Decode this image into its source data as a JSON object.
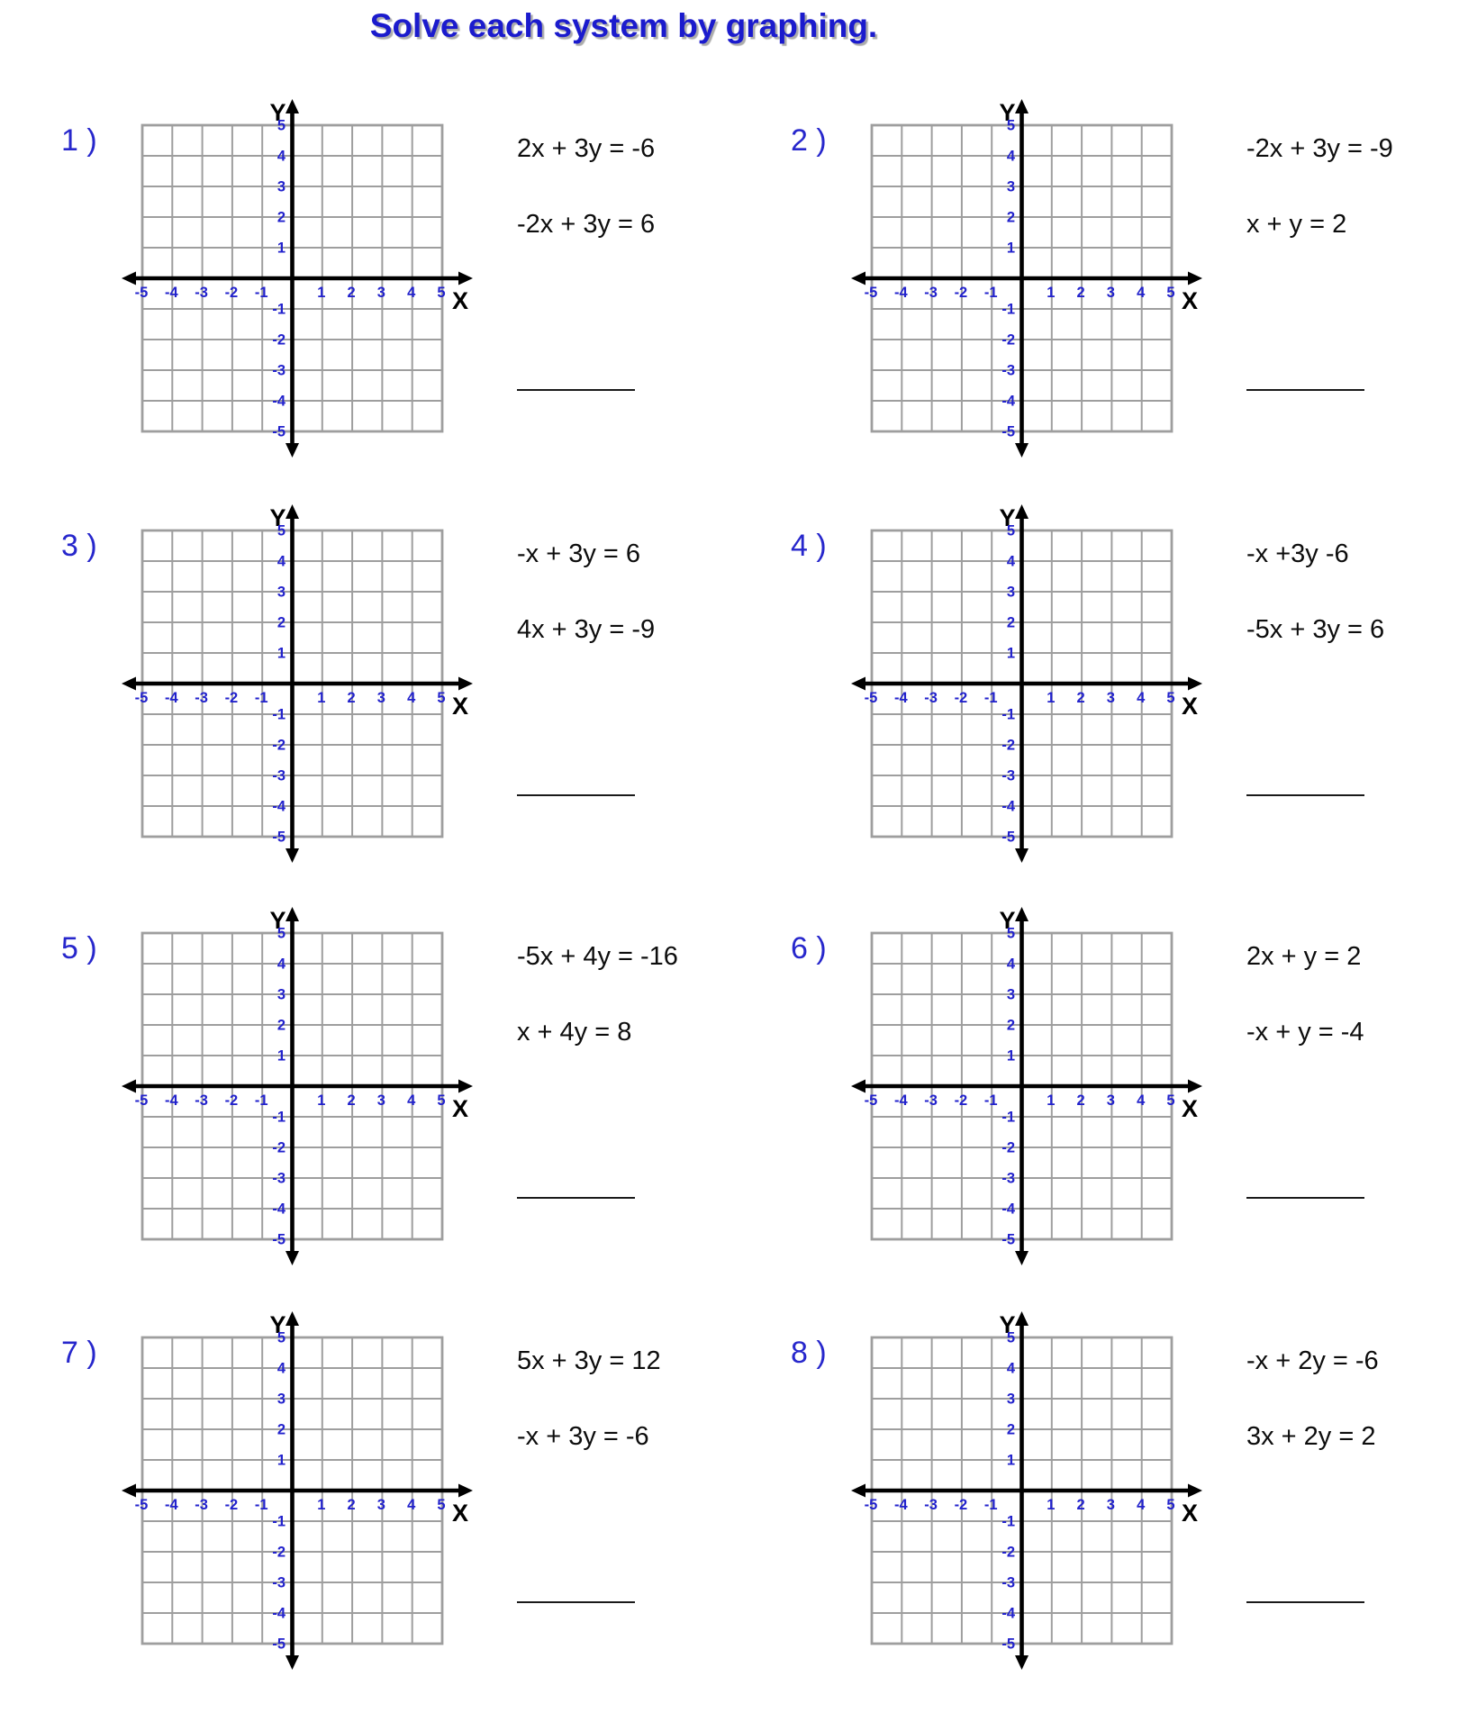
{
  "title": "Solve each system by graphing.",
  "colors": {
    "title_blue": "#1b1bcd",
    "tick_blue": "#2222cc",
    "grid_gray": "#9e9e9e",
    "axis_black": "#000000"
  },
  "grid": {
    "x_label": "X",
    "y_label": "Y",
    "x_range": [
      -5,
      5
    ],
    "y_range": [
      -5,
      5
    ],
    "x_ticks": [
      "-5",
      "-4",
      "-3",
      "-2",
      "-1",
      "1",
      "2",
      "3",
      "4",
      "5"
    ],
    "y_ticks": [
      "5",
      "4",
      "3",
      "2",
      "1",
      "-1",
      "-2",
      "-3",
      "-4",
      "-5"
    ]
  },
  "problems": [
    {
      "number": "1 )",
      "equations": [
        "2x + 3y = -6",
        "-2x + 3y = 6"
      ]
    },
    {
      "number": "2 )",
      "equations": [
        "-2x + 3y = -9",
        "x + y = 2"
      ]
    },
    {
      "number": "3 )",
      "equations": [
        "-x + 3y = 6",
        "4x + 3y = -9"
      ]
    },
    {
      "number": "4 )",
      "equations": [
        "-x +3y -6",
        "-5x + 3y = 6"
      ]
    },
    {
      "number": "5 )",
      "equations": [
        "-5x + 4y = -16",
        "x + 4y = 8"
      ]
    },
    {
      "number": "6 )",
      "equations": [
        "2x + y = 2",
        "-x + y = -4"
      ]
    },
    {
      "number": "7 )",
      "equations": [
        "5x + 3y = 12",
        "-x + 3y = -6"
      ]
    },
    {
      "number": "8 )",
      "equations": [
        "-x + 2y = -6",
        "3x + 2y = 2"
      ]
    }
  ]
}
